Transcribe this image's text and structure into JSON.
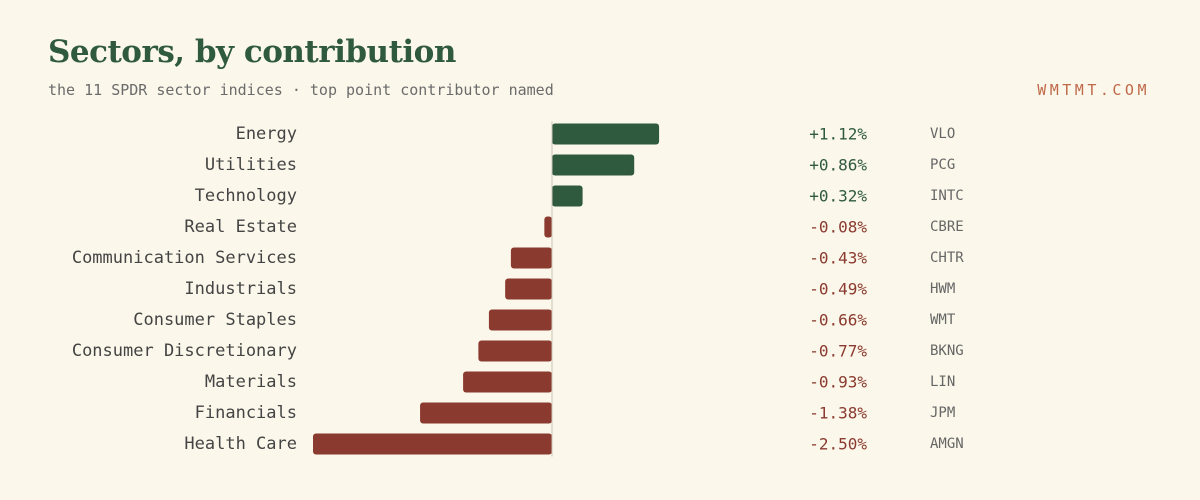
{
  "header": {
    "title": "Sectors, by contribution",
    "subtitle": "the 11 SPDR sector indices · top point contributor named",
    "brand": "WMTMT.COM"
  },
  "colors": {
    "positive": "#2f5a3e",
    "negative": "#8b3a2f",
    "label": "#444444",
    "ticker": "#666666",
    "axis": "#c9c3b0"
  },
  "chart_data": {
    "type": "bar",
    "orientation": "horizontal",
    "unit": "%",
    "categories": [
      "Energy",
      "Utilities",
      "Technology",
      "Real Estate",
      "Communication Services",
      "Industrials",
      "Consumer Staples",
      "Consumer Discretionary",
      "Materials",
      "Financials",
      "Health Care"
    ],
    "values": [
      1.12,
      0.86,
      0.32,
      -0.08,
      -0.43,
      -0.49,
      -0.66,
      -0.77,
      -0.93,
      -1.38,
      -2.5
    ],
    "value_labels": [
      "+1.12%",
      "+0.86%",
      "+0.32%",
      "-0.08%",
      "-0.43%",
      "-0.49%",
      "-0.66%",
      "-0.77%",
      "-0.93%",
      "-1.38%",
      "-2.50%"
    ],
    "top_contributors": [
      "VLO",
      "PCG",
      "INTC",
      "CBRE",
      "CHTR",
      "HWM",
      "WMT",
      "BKNG",
      "LIN",
      "JPM",
      "AMGN"
    ],
    "grid": false,
    "legend": "none"
  }
}
